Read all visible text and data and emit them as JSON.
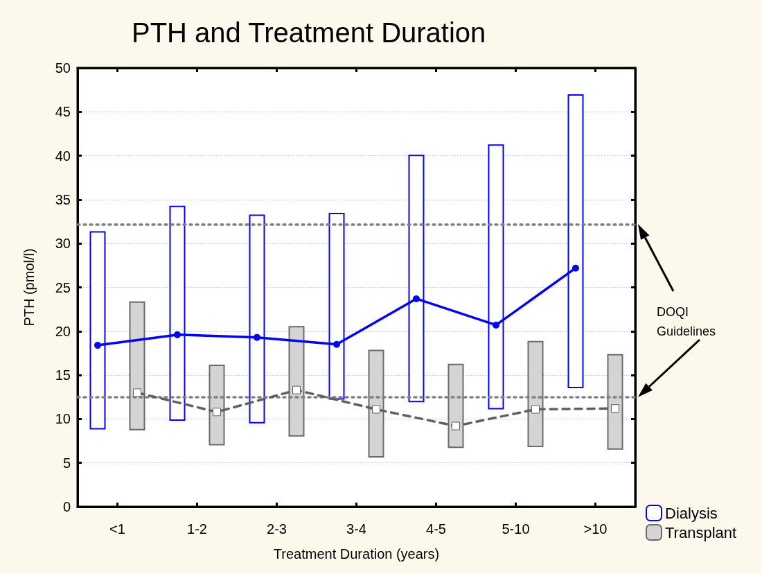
{
  "chart_data": {
    "type": "bar",
    "title": "PTH and Treatment Duration",
    "xlabel": "Treatment Duration (years)",
    "ylabel": "PTH (pmol/l)",
    "categories": [
      "<1",
      "1-2",
      "2-3",
      "3-4",
      "4-5",
      "5-10",
      ">10"
    ],
    "series": [
      {
        "name": "Dialysis",
        "color": "#0000ff",
        "base": [
          8.8,
          9.8,
          9.5,
          12.2,
          11.9,
          11.1,
          13.5
        ],
        "values": [
          22.6,
          24.5,
          23.8,
          21.3,
          28.2,
          30.2,
          33.5
        ]
      },
      {
        "name": "Transplant",
        "color": "#d4d4d4",
        "base": [
          8.7,
          7.0,
          8.0,
          5.6,
          6.7,
          6.8,
          6.5
        ],
        "values": [
          14.7,
          9.2,
          12.6,
          12.3,
          9.6,
          12.1,
          10.9
        ]
      },
      {
        "type": "line",
        "color": "#0000ff",
        "marker": "circle",
        "line_style": "solid",
        "values": [
          18.4,
          19.6,
          19.3,
          18.5,
          23.7,
          20.7,
          27.2
        ]
      },
      {
        "type": "line",
        "color": "#606060",
        "marker": "square",
        "line_style": "dashed",
        "values": [
          13.0,
          10.8,
          13.3,
          11.1,
          9.2,
          11.1,
          11.2
        ]
      }
    ],
    "ylim": [
      0,
      50
    ],
    "yticks": [
      0,
      5,
      10,
      15,
      20,
      25,
      30,
      35,
      40,
      45,
      50
    ],
    "grid": "y",
    "legend": "bottom right",
    "ref_lines": [
      {
        "axis": "y",
        "value": 32.2,
        "color": "#808080",
        "line_style": "dotted"
      },
      {
        "axis": "y",
        "value": 12.5,
        "color": "#808080",
        "line_style": "dotted"
      }
    ],
    "annotations": [
      "DOQI Guidelines"
    ]
  }
}
